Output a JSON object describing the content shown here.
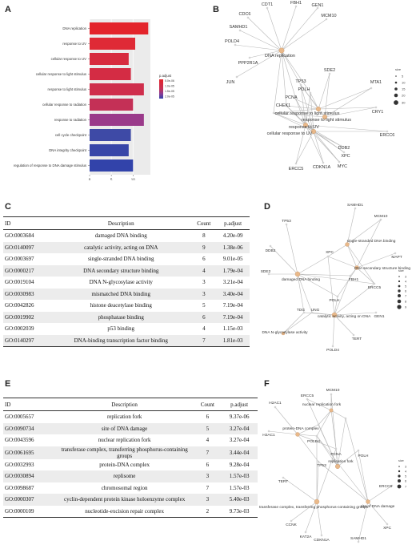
{
  "panels": {
    "a": "A",
    "b": "B",
    "c": "C",
    "d": "D",
    "e": "E",
    "f": "F"
  },
  "chart_data": {
    "type": "bar",
    "orientation": "horizontal",
    "categories": [
      "DNA replication",
      "response to UV",
      "cellular response to UV",
      "cellular response to light stimulus",
      "response to light stimulus",
      "cellular response to radiation",
      "response to radiation",
      "cell cycle checkpoint",
      "DNA integrity checkpoint",
      "regulation of response to DNA damage stimulus"
    ],
    "values": [
      13.5,
      10.5,
      9,
      9.5,
      12.5,
      10,
      12.5,
      9.5,
      9,
      10
    ],
    "colors": [
      "#e3242b",
      "#df2a36",
      "#d72b3e",
      "#d42c44",
      "#cf2e4c",
      "#c43056",
      "#9a3a8a",
      "#3e4aa6",
      "#3846a8",
      "#3243aa"
    ],
    "xticks": [
      0,
      5,
      10
    ],
    "xlim": [
      0,
      14
    ],
    "legend": {
      "title": "p.adjust",
      "labels": [
        "5.0e-06",
        "1.0e-05",
        "1.5e-05",
        "2.0e-05"
      ],
      "position": "right"
    }
  },
  "network_b": {
    "size_legend": {
      "title": "size",
      "labels": [
        "5",
        "10",
        "15",
        "20",
        "30"
      ]
    },
    "labels": [
      "DNA replication",
      "CDT1",
      "FBH1",
      "GEN1",
      "CDC6",
      "MCM10",
      "SAMHD1",
      "POLD4",
      "PPP2R1A",
      "JUN",
      "SDE2",
      "TP53",
      "POLH",
      "PCNA",
      "CHEK1",
      "MTA1",
      "CRY1",
      "cellular response to light stimulus",
      "response to light stimulus",
      "response to UV",
      "cellular response to UV",
      "ERCC6",
      "DDB2",
      "XPC",
      "ERCC5",
      "CDKN1A",
      "MYC"
    ]
  },
  "table_c": {
    "headers": [
      "ID",
      "Description",
      "Count",
      "p.adjust"
    ],
    "rows": [
      [
        "GO:0003684",
        "damaged DNA binding",
        "8",
        "4.20e-09"
      ],
      [
        "GO:0140097",
        "catalytic activity, acting on DNA",
        "9",
        "1.38e-06"
      ],
      [
        "GO:0003697",
        "single-stranded DNA binding",
        "6",
        "9.01e-05"
      ],
      [
        "GO:0000217",
        "DNA secondary structure binding",
        "4",
        "1.79e-04"
      ],
      [
        "GO:0019104",
        "DNA N-glycosylase activity",
        "3",
        "3.21e-04"
      ],
      [
        "GO:0030983",
        "mismatched DNA binding",
        "3",
        "3.40e-04"
      ],
      [
        "GO:0042826",
        "histone deacetylase binding",
        "5",
        "7.19e-04"
      ],
      [
        "GO:0019902",
        "phosphatase binding",
        "6",
        "7.19e-04"
      ],
      [
        "GO:0002039",
        "p53 binding",
        "4",
        "1.15e-03"
      ],
      [
        "GO:0140297",
        "DNA-binding transcription factor binding",
        "7",
        "1.81e-03"
      ]
    ]
  },
  "network_d": {
    "size_legend": {
      "title": "size",
      "labels": [
        "3",
        "4",
        "5",
        "6",
        "7",
        "8",
        "9"
      ]
    },
    "labels": [
      "SAMHD1",
      "MCM10",
      "TP53",
      "single-stranded DNA binding",
      "MAPT",
      "DDB2",
      "XPC",
      "DNA secondary structure binding",
      "FBH1",
      "SDE2",
      "damaged DNA binding",
      "ERCC5",
      "POLH",
      "GEN1",
      "TDG",
      "UNG",
      "catalytic activity, acting on DNA",
      "DNA N-glycosylase activity",
      "TERT",
      "POLD4"
    ]
  },
  "table_e": {
    "headers": [
      "ID",
      "Description",
      "Count",
      "p.adjust"
    ],
    "rows": [
      [
        "GO:0005657",
        "replication fork",
        "6",
        "9.37e-06"
      ],
      [
        "GO:0090734",
        "site of DNA damage",
        "5",
        "3.27e-04"
      ],
      [
        "GO:0043596",
        "nuclear replication fork",
        "4",
        "3.27e-04"
      ],
      [
        "GO:0061695",
        "transferase complex, transferring phosphorus-containing groups",
        "7",
        "3.44e-04"
      ],
      [
        "GO:0032993",
        "protein-DNA complex",
        "6",
        "9.28e-04"
      ],
      [
        "GO:0030894",
        "replisome",
        "3",
        "1.57e-03"
      ],
      [
        "GO:0098687",
        "chromosomal region",
        "7",
        "1.57e-03"
      ],
      [
        "GO:0000307",
        "cyclin-dependent protein kinase holoenzyme complex",
        "3",
        "5.40e-03"
      ],
      [
        "GO:0000109",
        "nucleotide-excision repair complex",
        "2",
        "9.73e-03"
      ]
    ]
  },
  "network_f": {
    "size_legend": {
      "title": "size",
      "labels": [
        "3",
        "4",
        "5",
        "6",
        "7"
      ]
    },
    "labels": [
      "H2AC1",
      "MCM10",
      "ERCC5",
      "nuclear replication fork",
      "H2AC1",
      "protein-DNA complex",
      "replication fork",
      "POLD4",
      "PCNA",
      "POLH",
      "ERCC6",
      "TERT",
      "TP53",
      "site of DNA damage",
      "transferase complex, transferring phosphorus-containing groups",
      "CCNK",
      "XPC",
      "KAT2A",
      "CDKN1A",
      "SAMHD1"
    ]
  }
}
